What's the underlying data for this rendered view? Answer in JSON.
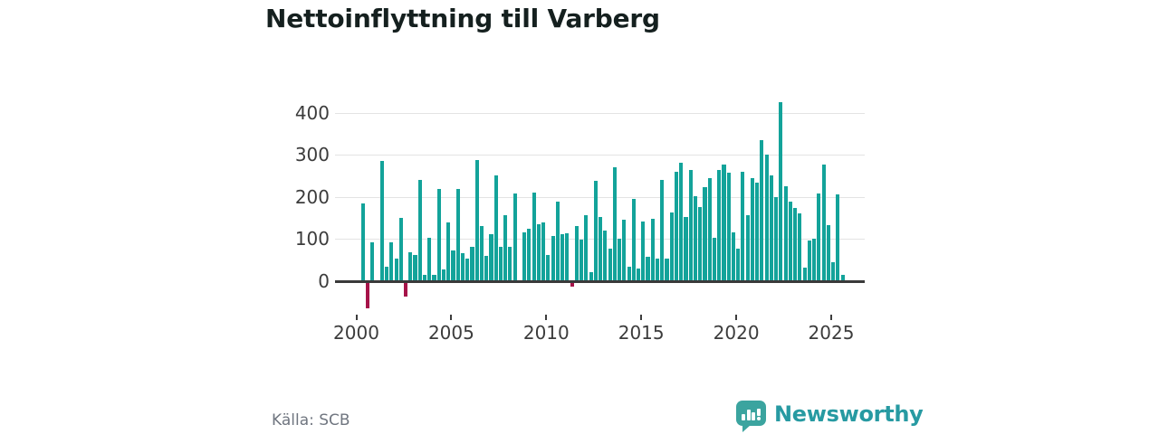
{
  "header": {
    "title": "Nettoinflyttning till Varberg"
  },
  "footer": {
    "source": "Källa: SCB",
    "brand": "Newsworthy"
  },
  "colors": {
    "positive_bar": "#13a39a",
    "negative_bar": "#a61349",
    "axis": "#3a3a3a",
    "grid": "#e3e3e3",
    "tick_label": "#3c3c3c",
    "title": "#15201f",
    "source": "#707680",
    "logo_bubble": "#3ba49f",
    "logo_text": "#279aa2",
    "background": "#ffffff"
  },
  "chart_data": {
    "type": "bar",
    "title": "Nettoinflyttning till Varberg",
    "frequency": "quarterly",
    "first_bar_period": "2000 Q2",
    "last_bar_period": "2025 Q3",
    "x_tick_labels": [
      "2000",
      "2005",
      "2010",
      "2015",
      "2020",
      "2025"
    ],
    "y_ticks": [
      0,
      100,
      200,
      300,
      400
    ],
    "ylim": [
      -80,
      445
    ],
    "grid": "horizontal",
    "legend": false,
    "series": [
      {
        "name": "Nettoinflyttning",
        "values": [
          185,
          -64,
          93,
          0,
          285,
          34,
          93,
          54,
          151,
          -37,
          68,
          63,
          241,
          16,
          104,
          15,
          220,
          27,
          140,
          74,
          220,
          66,
          54,
          82,
          288,
          131,
          61,
          111,
          252,
          81,
          156,
          82,
          209,
          0,
          115,
          124,
          211,
          136,
          139,
          63,
          108,
          189,
          111,
          113,
          -12,
          131,
          99,
          157,
          21,
          239,
          152,
          120,
          77,
          270,
          101,
          146,
          34,
          195,
          31,
          141,
          59,
          149,
          54,
          241,
          54,
          164,
          259,
          281,
          152,
          264,
          202,
          177,
          224,
          245,
          104,
          264,
          276,
          257,
          115,
          77,
          259,
          156,
          245,
          234,
          334,
          301,
          252,
          199,
          426,
          225,
          189,
          174,
          161,
          32,
          97,
          102,
          209,
          277,
          134,
          45,
          207,
          15
        ]
      }
    ]
  }
}
